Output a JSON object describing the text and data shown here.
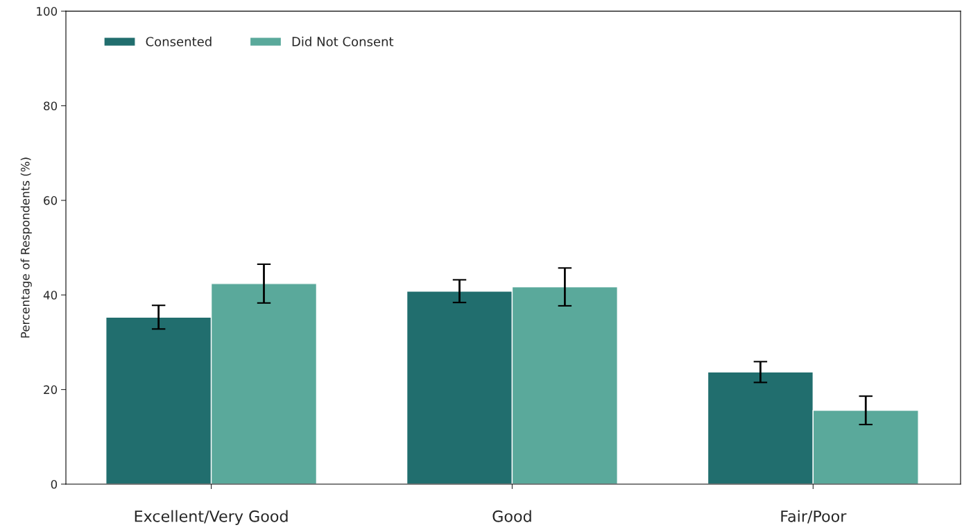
{
  "chart_data": {
    "type": "bar",
    "ylabel": "Percentage of Respondents (%)",
    "categories": [
      "Excellent/Very Good",
      "Good",
      "Fair/Poor"
    ],
    "series": [
      {
        "name": "Consented",
        "color": "#216e6e",
        "values": [
          35.3,
          40.8,
          23.7
        ],
        "errors": [
          2.5,
          2.4,
          2.2
        ]
      },
      {
        "name": "Did Not Consent",
        "color": "#5aa99b",
        "values": [
          42.4,
          41.7,
          15.6
        ],
        "errors": [
          4.1,
          4.0,
          3.0
        ]
      }
    ],
    "ylim": [
      0,
      100
    ],
    "yticks": [
      0,
      20,
      40,
      60,
      80,
      100
    ],
    "grid": false,
    "legend": "top left"
  }
}
